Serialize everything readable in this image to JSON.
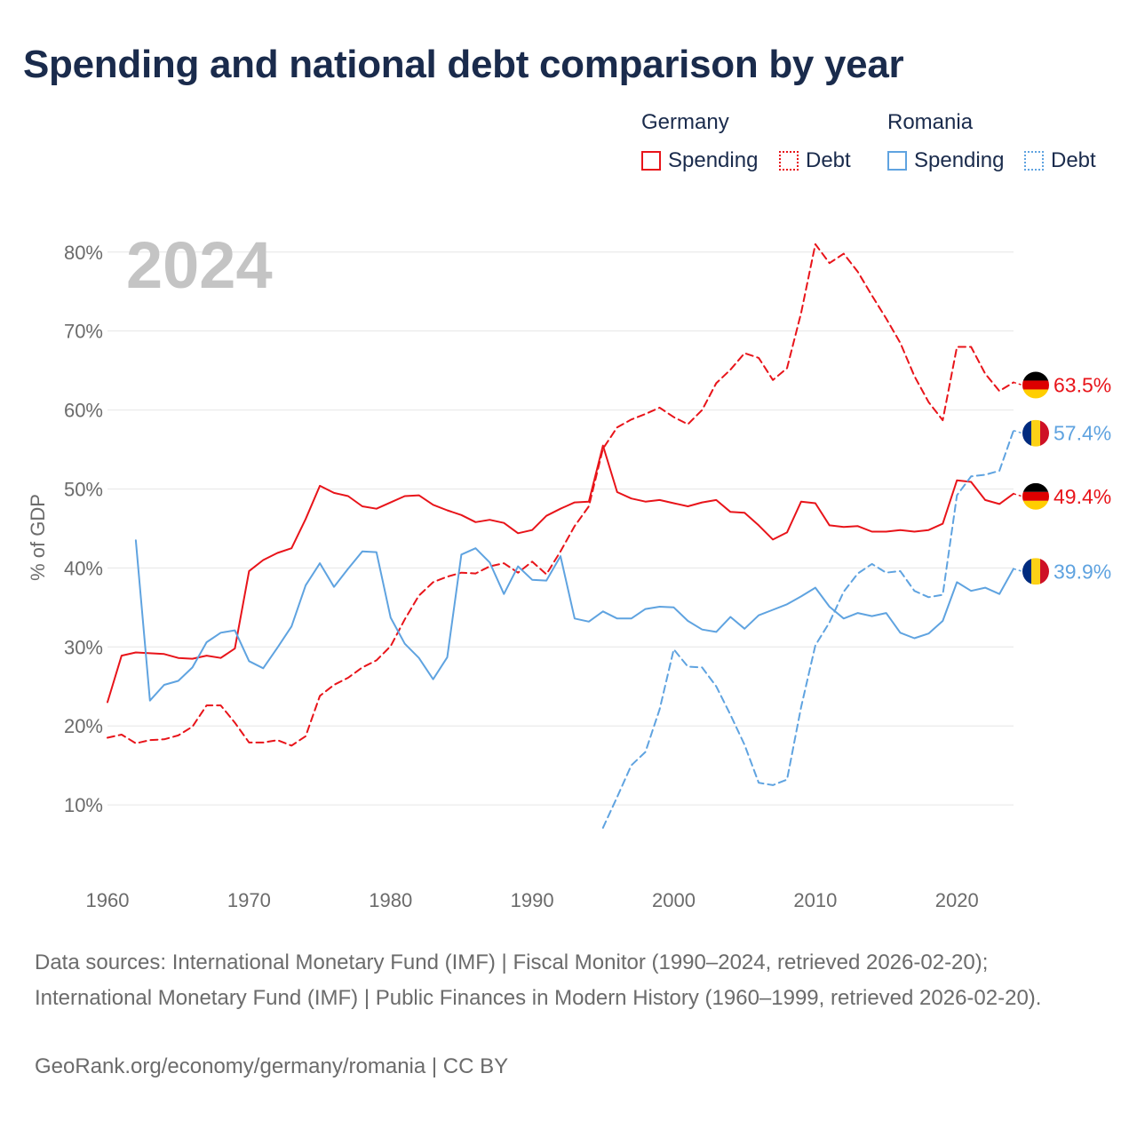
{
  "title": "Spending and national debt comparison by year",
  "legend": {
    "groups": [
      {
        "country": "Germany",
        "items": [
          "Spending",
          "Debt"
        ]
      },
      {
        "country": "Romania",
        "items": [
          "Spending",
          "Debt"
        ]
      }
    ]
  },
  "colors": {
    "germany": "#e8141a",
    "romania": "#5fa3e0",
    "grid": "#e6e6e6",
    "axis_text": "#6b6b6b",
    "year": "#c4c4c4",
    "title": "#1a2b4c"
  },
  "icons": {
    "germany": "germany-flag-icon",
    "romania": "romania-flag-icon"
  },
  "footer": {
    "sources": "Data sources: International Monetary Fund (IMF) | Fiscal Monitor (1990–2024, retrieved 2026-02-20); International Monetary Fund (IMF) | Public Finances in Modern History (1960–1999, retrieved 2026-02-20).",
    "credit": "GeoRank.org/economy/germany/romania | CC BY"
  },
  "chart_data": {
    "type": "line",
    "title": "Spending and national debt comparison by year",
    "year_label": "2024",
    "xlabel": "",
    "ylabel": "% of GDP",
    "xlim": [
      1960,
      2024
    ],
    "ylim": [
      0,
      82
    ],
    "x_ticks": [
      1960,
      1970,
      1980,
      1990,
      2000,
      2010,
      2020
    ],
    "y_ticks": [
      10,
      20,
      30,
      40,
      50,
      60,
      70,
      80
    ],
    "y_tick_labels": [
      "10%",
      "20%",
      "30%",
      "40%",
      "50%",
      "60%",
      "70%",
      "80%"
    ],
    "grid": true,
    "legend_position": "top-right",
    "series": [
      {
        "name": "Germany Debt",
        "country": "Germany",
        "measure": "Debt",
        "color": "#e8141a",
        "dash": "dashed",
        "end_label": "63.5%",
        "flag": "germany",
        "x": [
          1960,
          1961,
          1962,
          1963,
          1964,
          1965,
          1966,
          1967,
          1968,
          1969,
          1970,
          1971,
          1972,
          1973,
          1974,
          1975,
          1976,
          1977,
          1978,
          1979,
          1980,
          1981,
          1982,
          1983,
          1984,
          1985,
          1986,
          1987,
          1988,
          1989,
          1990,
          1991,
          1992,
          1993,
          1994,
          1995,
          1996,
          1997,
          1998,
          1999,
          2000,
          2001,
          2002,
          2003,
          2004,
          2005,
          2006,
          2007,
          2008,
          2009,
          2010,
          2011,
          2012,
          2013,
          2014,
          2015,
          2016,
          2017,
          2018,
          2019,
          2020,
          2021,
          2022,
          2023,
          2024
        ],
        "values": [
          18.5,
          18.9,
          17.8,
          18.2,
          18.3,
          18.8,
          19.9,
          22.6,
          22.6,
          20.4,
          17.9,
          17.9,
          18.2,
          17.5,
          18.7,
          23.8,
          25.2,
          26.1,
          27.4,
          28.3,
          30.1,
          33.5,
          36.5,
          38.2,
          38.9,
          39.4,
          39.3,
          40.2,
          40.6,
          39.4,
          40.8,
          39.2,
          42.1,
          45.3,
          47.8,
          55.1,
          57.8,
          58.8,
          59.5,
          60.3,
          59.1,
          58.2,
          60.0,
          63.4,
          65.1,
          67.2,
          66.6,
          63.8,
          65.3,
          72.3,
          81.0,
          78.6,
          79.8,
          77.5,
          74.5,
          71.6,
          68.5,
          64.3,
          61.0,
          58.7,
          68.0,
          68.0,
          64.6,
          62.4,
          63.5
        ]
      },
      {
        "name": "Germany Spending",
        "country": "Germany",
        "measure": "Spending",
        "color": "#e8141a",
        "dash": "solid",
        "end_label": "49.4%",
        "flag": "germany",
        "x": [
          1960,
          1961,
          1962,
          1963,
          1964,
          1965,
          1966,
          1967,
          1968,
          1969,
          1970,
          1971,
          1972,
          1973,
          1974,
          1975,
          1976,
          1977,
          1978,
          1979,
          1980,
          1981,
          1982,
          1983,
          1984,
          1985,
          1986,
          1987,
          1988,
          1989,
          1990,
          1991,
          1992,
          1993,
          1994,
          1995,
          1996,
          1997,
          1998,
          1999,
          2000,
          2001,
          2002,
          2003,
          2004,
          2005,
          2006,
          2007,
          2008,
          2009,
          2010,
          2011,
          2012,
          2013,
          2014,
          2015,
          2016,
          2017,
          2018,
          2019,
          2020,
          2021,
          2022,
          2023,
          2024
        ],
        "values": [
          23.0,
          28.9,
          29.3,
          29.2,
          29.1,
          28.6,
          28.5,
          28.9,
          28.6,
          29.8,
          39.6,
          41.0,
          41.9,
          42.5,
          46.2,
          50.4,
          49.5,
          49.1,
          47.8,
          47.5,
          48.3,
          49.1,
          49.2,
          48.0,
          47.3,
          46.7,
          45.8,
          46.1,
          45.7,
          44.4,
          44.8,
          46.6,
          47.5,
          48.3,
          48.4,
          55.5,
          49.6,
          48.8,
          48.4,
          48.6,
          48.2,
          47.8,
          48.3,
          48.6,
          47.1,
          47.0,
          45.4,
          43.6,
          44.5,
          48.4,
          48.2,
          45.4,
          45.2,
          45.3,
          44.6,
          44.6,
          44.8,
          44.6,
          44.8,
          45.6,
          51.1,
          50.9,
          48.6,
          48.1,
          49.4
        ]
      },
      {
        "name": "Romania Debt",
        "country": "Romania",
        "measure": "Debt",
        "color": "#5fa3e0",
        "dash": "dashed",
        "end_label": "57.4%",
        "flag": "romania",
        "x": [
          1995,
          1996,
          1997,
          1998,
          1999,
          2000,
          2001,
          2002,
          2003,
          2004,
          2005,
          2006,
          2007,
          2008,
          2009,
          2010,
          2011,
          2012,
          2013,
          2014,
          2015,
          2016,
          2017,
          2018,
          2019,
          2020,
          2021,
          2022,
          2023,
          2024
        ],
        "values": [
          7.1,
          11.0,
          15.0,
          16.7,
          22.1,
          29.7,
          27.5,
          27.4,
          25.0,
          21.4,
          17.6,
          12.8,
          12.5,
          13.2,
          22.4,
          30.2,
          33.1,
          37.0,
          39.3,
          40.5,
          39.4,
          39.6,
          37.1,
          36.3,
          36.6,
          49.2,
          51.6,
          51.8,
          52.3,
          57.4
        ]
      },
      {
        "name": "Romania Spending",
        "country": "Romania",
        "measure": "Spending",
        "color": "#5fa3e0",
        "dash": "solid",
        "end_label": "39.9%",
        "flag": "romania",
        "x": [
          1962,
          1963,
          1964,
          1965,
          1966,
          1967,
          1968,
          1969,
          1970,
          1971,
          1972,
          1973,
          1974,
          1975,
          1976,
          1977,
          1978,
          1979,
          1980,
          1981,
          1982,
          1983,
          1984,
          1985,
          1986,
          1987,
          1988,
          1989,
          1990,
          1991,
          1992,
          1993,
          1994,
          1995,
          1996,
          1997,
          1998,
          1999,
          2000,
          2001,
          2002,
          2003,
          2004,
          2005,
          2006,
          2007,
          2008,
          2009,
          2010,
          2011,
          2012,
          2013,
          2014,
          2015,
          2016,
          2017,
          2018,
          2019,
          2020,
          2021,
          2022,
          2023,
          2024
        ],
        "values": [
          43.5,
          23.2,
          25.2,
          25.7,
          27.4,
          30.6,
          31.8,
          32.1,
          28.2,
          27.3,
          29.9,
          32.6,
          37.8,
          40.6,
          37.6,
          39.9,
          42.1,
          42.0,
          33.7,
          30.4,
          28.6,
          25.9,
          28.7,
          41.7,
          42.5,
          40.7,
          36.7,
          40.2,
          38.5,
          38.4,
          41.5,
          33.6,
          33.2,
          34.5,
          33.6,
          33.6,
          34.8,
          35.1,
          35.0,
          33.3,
          32.2,
          31.9,
          33.8,
          32.3,
          34.0,
          34.7,
          35.4,
          36.4,
          37.5,
          35.1,
          33.6,
          34.3,
          33.9,
          34.3,
          31.8,
          31.1,
          31.7,
          33.3,
          38.2,
          37.1,
          37.5,
          36.7,
          39.9
        ]
      }
    ]
  }
}
